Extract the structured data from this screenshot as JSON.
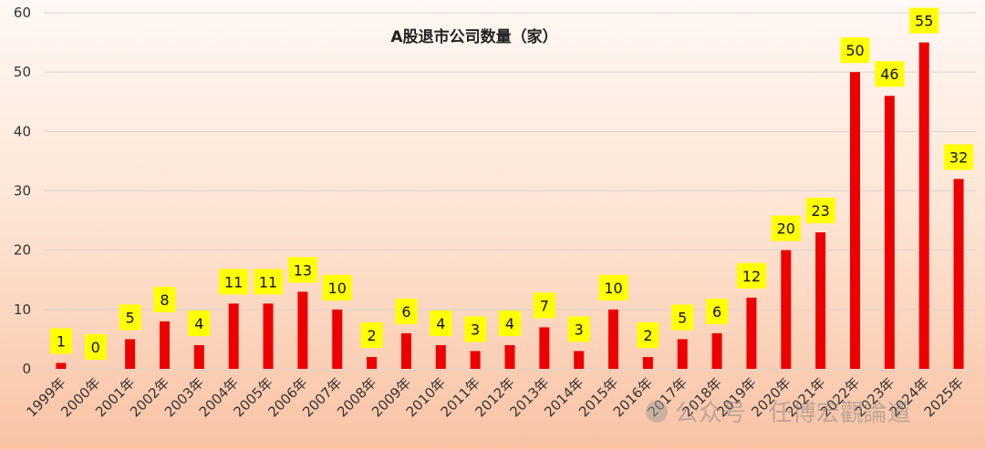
{
  "chart_data": {
    "type": "bar",
    "title": "A股退市公司数量（家）",
    "categories": [
      "1999年",
      "2000年",
      "2001年",
      "2002年",
      "2003年",
      "2004年",
      "2005年",
      "2006年",
      "2007年",
      "2008年",
      "2009年",
      "2010年",
      "2011年",
      "2012年",
      "2013年",
      "2014年",
      "2015年",
      "2016年",
      "2017年",
      "2018年",
      "2019年",
      "2020年",
      "2021年",
      "2022年",
      "2023年",
      "2024年",
      "2025年"
    ],
    "values": [
      1,
      0,
      5,
      8,
      4,
      11,
      11,
      13,
      10,
      2,
      6,
      4,
      3,
      4,
      7,
      3,
      10,
      2,
      5,
      6,
      12,
      20,
      23,
      50,
      46,
      55,
      32
    ],
    "ylim": [
      0,
      60
    ],
    "yticks": [
      0,
      10,
      20,
      30,
      40,
      50,
      60
    ],
    "grid": true,
    "legend": "none",
    "bar_color": "#ee0000",
    "label_bg_color": "#ffff00"
  },
  "watermark": "公众号 · 任博宏觀論道"
}
